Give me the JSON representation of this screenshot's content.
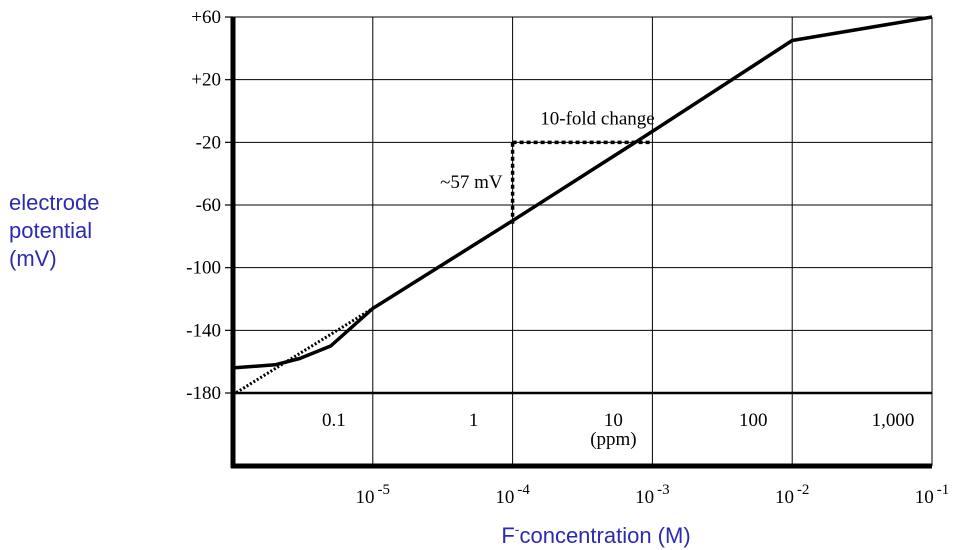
{
  "chart_data": {
    "type": "line",
    "title": "",
    "ylabel_lines": [
      "electrode",
      "potential",
      "(mV)"
    ],
    "xlabel": {
      "prefix": "F",
      "superscript": "-",
      "suffix": "concentration (M)"
    },
    "x_scale": "log",
    "xlim_molar": [
      1e-06,
      0.1
    ],
    "ylim": [
      -180,
      60
    ],
    "y_ticks": [
      60,
      20,
      -20,
      -60,
      -100,
      -140,
      -180
    ],
    "y_tick_labels": [
      "+60",
      "+20",
      "-20",
      "-60",
      "-100",
      "-140",
      "-180"
    ],
    "x_molar_ticks": [
      {
        "value": 1e-05,
        "base": "10",
        "exp": "-5"
      },
      {
        "value": 0.0001,
        "base": "10",
        "exp": "-4"
      },
      {
        "value": 0.001,
        "base": "10",
        "exp": "-3"
      },
      {
        "value": 0.01,
        "base": "10",
        "exp": "-2"
      },
      {
        "value": 0.1,
        "base": "10",
        "exp": "-1"
      }
    ],
    "x_ppm_ticks": [
      {
        "value": 0.1,
        "label": "0.1"
      },
      {
        "value": 1,
        "label": "1"
      },
      {
        "value": 10,
        "label": "10"
      },
      {
        "value": 100,
        "label": "100"
      },
      {
        "value": 1000,
        "label": "1,000"
      }
    ],
    "ppm_unit_label": "(ppm)",
    "ppm_per_molar": 19000,
    "grid": true,
    "series": [
      {
        "style": "solid",
        "x": [
          1e-06,
          2e-06,
          3e-06,
          5e-06,
          1e-05,
          0.0001,
          0.001,
          0.01,
          0.1
        ],
        "y": [
          -164,
          -162,
          -158,
          -150,
          -126,
          -70,
          -13,
          45,
          60
        ]
      },
      {
        "style": "dotted",
        "x": [
          1e-06,
          1e-05
        ],
        "y": [
          -181,
          -126
        ]
      }
    ],
    "annotations": {
      "tenfold_label": "10-fold change",
      "mv_label": "~57 mV",
      "step_x_from": 0.0001,
      "step_x_to": 0.001,
      "step_y_from": -72,
      "step_y_to": -20
    }
  }
}
